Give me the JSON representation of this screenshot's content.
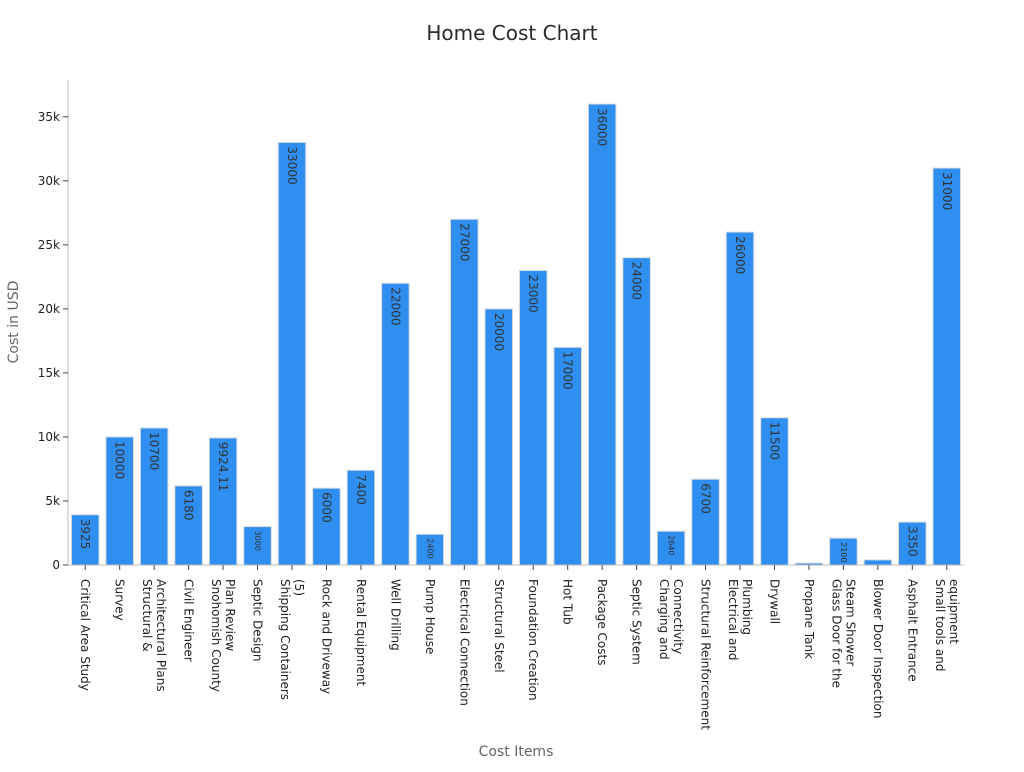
{
  "chart_data": {
    "type": "bar",
    "title": "Home Cost Chart",
    "xlabel": "Cost Items",
    "ylabel": "Cost in USD",
    "ylim": [
      0,
      37000
    ],
    "yticks": [
      0,
      5000,
      10000,
      15000,
      20000,
      25000,
      30000,
      35000
    ],
    "ytick_labels": [
      "0",
      "5k",
      "10k",
      "15k",
      "20k",
      "25k",
      "30k",
      "35k"
    ],
    "bar_color": "#2e8ff0",
    "bar_edge_color": "#dcdcdc",
    "grid": false,
    "legend": "none",
    "categories": [
      "Critical Area Study",
      "Survey",
      "Structural & Architectural Plans",
      "Civil Engineer",
      "Snohomish County Plan Review",
      "Septic Design",
      "Shipping Containers (5)",
      "Rock and Driveway",
      "Rental Equipment",
      "Well Drilling",
      "Pump House",
      "Electrical Connection",
      "Structural Steel",
      "Foundation Creation",
      "Hot Tub",
      "Package Costs",
      "Septic System",
      "Charging and Connectivity",
      "Structural Reinforcement",
      "Electrical and Plumbing",
      "Drywall",
      "Propane Tank",
      "Glass Door for the Steam Shower",
      "Blower Door Inspection",
      "Asphalt Entrance",
      "Small tools and equipment"
    ],
    "category_label_lines": [
      [
        "Critical Area Study"
      ],
      [
        "Survey"
      ],
      [
        "Structural &",
        "Architectural Plans"
      ],
      [
        "Civil Engineer"
      ],
      [
        "Snohomish County",
        "Plan Review"
      ],
      [
        "Septic Design"
      ],
      [
        "Shipping Containers",
        "(5)"
      ],
      [
        "Rock and Driveway"
      ],
      [
        "Rental Equipment"
      ],
      [
        "Well Drilling"
      ],
      [
        "Pump House"
      ],
      [
        "Electrical Connection"
      ],
      [
        "Structural Steel"
      ],
      [
        "Foundation Creation"
      ],
      [
        "Hot Tub"
      ],
      [
        "Package Costs"
      ],
      [
        "Septic System"
      ],
      [
        "Charging and",
        "Connectivity"
      ],
      [
        "Structural Reinforcement"
      ],
      [
        "Electrical and",
        "Plumbing"
      ],
      [
        "Drywall"
      ],
      [
        "Propane Tank"
      ],
      [
        "Glass Door for the",
        "Steam Shower"
      ],
      [
        "Blower Door Inspection"
      ],
      [
        "Asphalt Entrance"
      ],
      [
        "Small tools and",
        "equipment"
      ]
    ],
    "values": [
      3925,
      10000,
      10700,
      6180,
      9924.11,
      3000,
      33000,
      6000,
      7400,
      22000,
      2400,
      27000,
      20000,
      23000,
      17000,
      36000,
      24000,
      2640,
      6700,
      26000,
      11500,
      150,
      2100,
      400,
      3350,
      31000
    ],
    "data_labels": [
      "3925",
      "10000",
      "10700",
      "6180",
      "9924.11",
      "3000",
      "33000",
      "6000",
      "7400",
      "22000",
      "2400",
      "27000",
      "20000",
      "23000",
      "17000",
      "36000",
      "24000",
      "2640",
      "6700",
      "26000",
      "11500",
      "",
      "2100",
      "",
      "3350",
      "31000"
    ]
  }
}
